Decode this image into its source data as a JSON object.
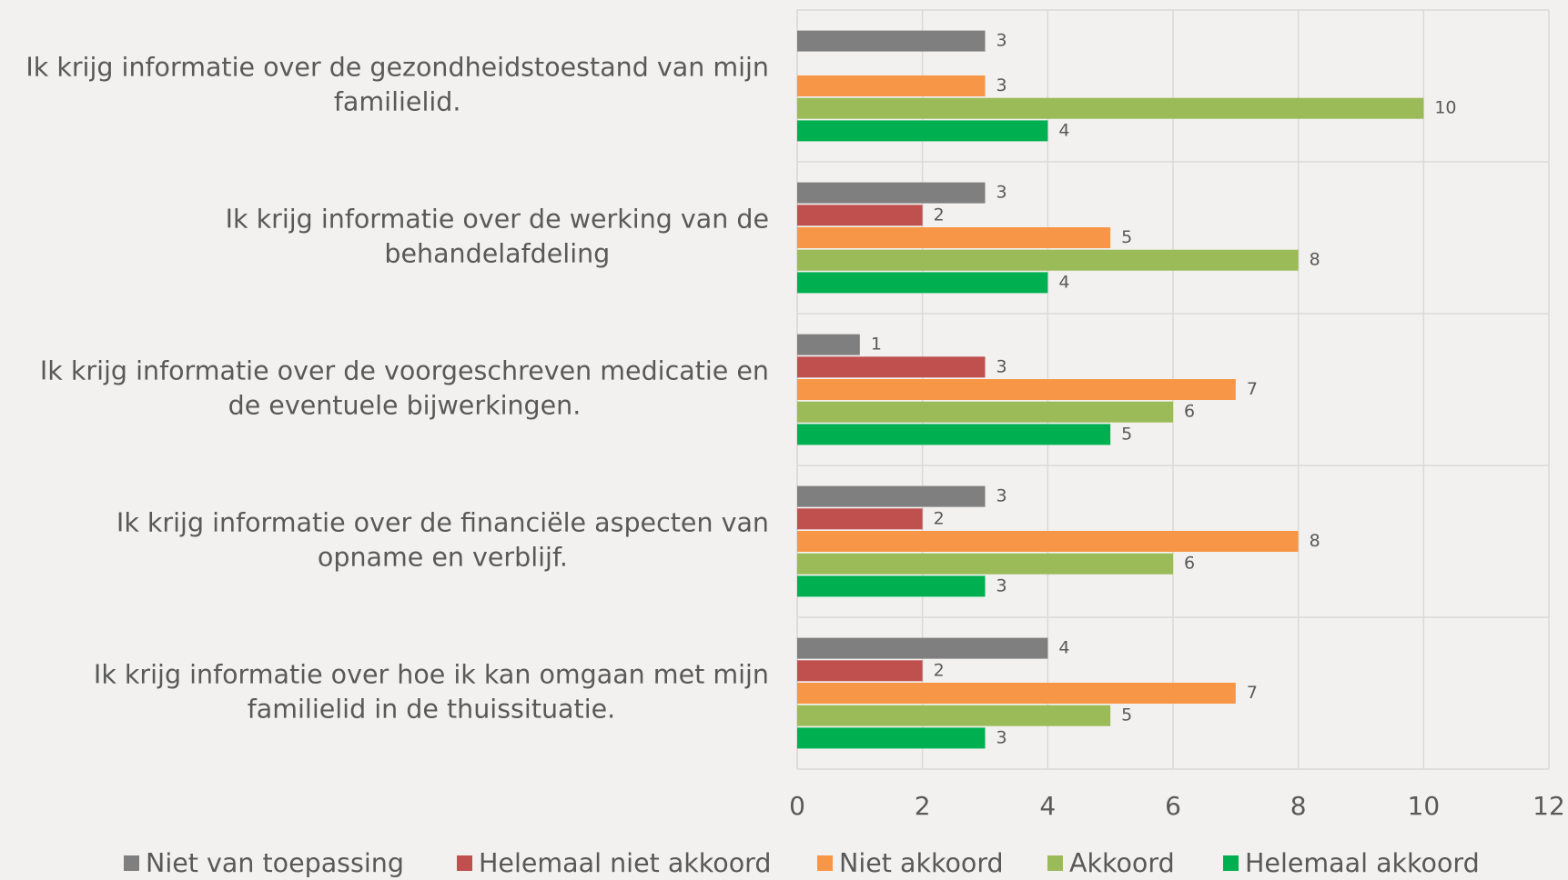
{
  "chart_data": {
    "type": "bar",
    "orientation": "horizontal",
    "categories": [
      "Ik krijg informatie over de gezondheidstoestand van mijn familielid.",
      "Ik krijg informatie over de werking van de behandelafdeling",
      "Ik krijg informatie over de voorgeschreven medicatie en de eventuele bijwerkingen.",
      "Ik krijg informatie over de financiële aspecten van opname en verblijf.",
      "Ik krijg informatie over hoe ik kan omgaan met mijn familielid in de thuissituatie."
    ],
    "series": [
      {
        "name": "Niet van toepassing",
        "color": "#7f7f7f",
        "values": [
          3,
          3,
          1,
          3,
          4
        ]
      },
      {
        "name": "Helemaal niet akkoord",
        "color": "#c0504d",
        "values": [
          null,
          2,
          3,
          2,
          2
        ]
      },
      {
        "name": "Niet akkoord",
        "color": "#f79646",
        "values": [
          3,
          5,
          7,
          8,
          7
        ]
      },
      {
        "name": "Akkoord",
        "color": "#9bbb59",
        "values": [
          10,
          8,
          6,
          6,
          5
        ]
      },
      {
        "name": "Helemaal akkoord",
        "color": "#00b050",
        "values": [
          4,
          4,
          5,
          3,
          3
        ]
      }
    ],
    "xlim": [
      0,
      12
    ],
    "xticks": [
      0,
      2,
      4,
      6,
      8,
      10,
      12
    ],
    "grid": true,
    "legend": "bottom"
  }
}
